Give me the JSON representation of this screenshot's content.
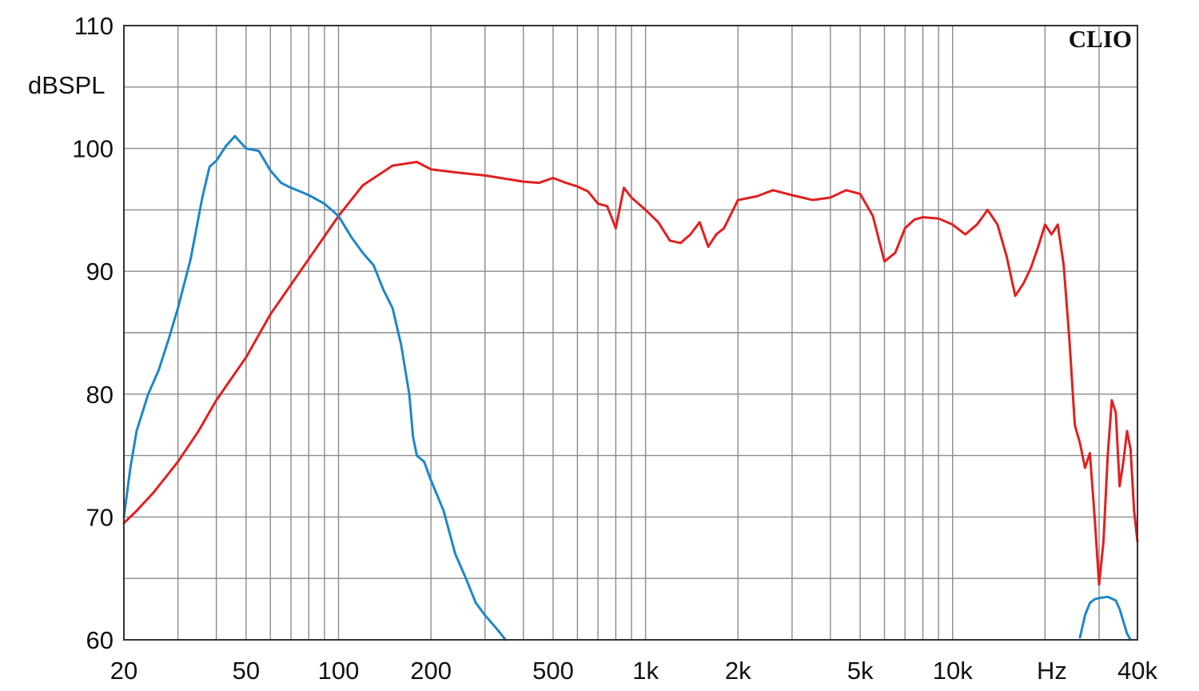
{
  "chart_data": {
    "type": "line",
    "brand": "CLIO",
    "ylabel": "dBSPL",
    "xlabel": "Hz",
    "x_scale": "log",
    "xlim": [
      20,
      40000
    ],
    "ylim": [
      60,
      110
    ],
    "grid": true,
    "x_tick_labels": [
      {
        "value": 20,
        "label": "20"
      },
      {
        "value": 50,
        "label": "50"
      },
      {
        "value": 100,
        "label": "100"
      },
      {
        "value": 200,
        "label": "200"
      },
      {
        "value": 500,
        "label": "500"
      },
      {
        "value": 1000,
        "label": "1k"
      },
      {
        "value": 2000,
        "label": "2k"
      },
      {
        "value": 5000,
        "label": "5k"
      },
      {
        "value": 10000,
        "label": "10k"
      },
      {
        "value": 40000,
        "label": "40k"
      }
    ],
    "y_tick_labels": [
      {
        "value": 110,
        "label": "110"
      },
      {
        "value": 100,
        "label": "100"
      },
      {
        "value": 90,
        "label": "90"
      },
      {
        "value": 80,
        "label": "80"
      },
      {
        "value": 70,
        "label": "70"
      },
      {
        "value": 60,
        "label": "60"
      }
    ],
    "series": [
      {
        "color": "#e02020",
        "points": [
          [
            20,
            69.5
          ],
          [
            22,
            70.5
          ],
          [
            25,
            72
          ],
          [
            30,
            74.5
          ],
          [
            35,
            77
          ],
          [
            40,
            79.5
          ],
          [
            50,
            83
          ],
          [
            60,
            86.5
          ],
          [
            80,
            91
          ],
          [
            100,
            94.5
          ],
          [
            120,
            97
          ],
          [
            150,
            98.6
          ],
          [
            180,
            98.9
          ],
          [
            200,
            98.3
          ],
          [
            250,
            98
          ],
          [
            300,
            97.8
          ],
          [
            400,
            97.3
          ],
          [
            450,
            97.2
          ],
          [
            500,
            97.6
          ],
          [
            550,
            97.2
          ],
          [
            600,
            96.9
          ],
          [
            650,
            96.5
          ],
          [
            700,
            95.5
          ],
          [
            750,
            95.3
          ],
          [
            800,
            93.5
          ],
          [
            850,
            96.8
          ],
          [
            900,
            96
          ],
          [
            1000,
            95
          ],
          [
            1100,
            94
          ],
          [
            1200,
            92.5
          ],
          [
            1300,
            92.3
          ],
          [
            1400,
            93
          ],
          [
            1500,
            94
          ],
          [
            1600,
            92
          ],
          [
            1700,
            93
          ],
          [
            1800,
            93.5
          ],
          [
            2000,
            95.8
          ],
          [
            2300,
            96.1
          ],
          [
            2600,
            96.6
          ],
          [
            3000,
            96.2
          ],
          [
            3500,
            95.8
          ],
          [
            4000,
            96
          ],
          [
            4500,
            96.6
          ],
          [
            5000,
            96.3
          ],
          [
            5500,
            94.5
          ],
          [
            6000,
            90.8
          ],
          [
            6500,
            91.5
          ],
          [
            7000,
            93.5
          ],
          [
            7500,
            94.2
          ],
          [
            8000,
            94.4
          ],
          [
            9000,
            94.3
          ],
          [
            10000,
            93.8
          ],
          [
            11000,
            93
          ],
          [
            12000,
            93.8
          ],
          [
            12500,
            94.4
          ],
          [
            13000,
            95
          ],
          [
            14000,
            93.8
          ],
          [
            15000,
            91.2
          ],
          [
            16000,
            88
          ],
          [
            17000,
            89
          ],
          [
            18000,
            90.3
          ],
          [
            19000,
            92
          ],
          [
            20000,
            93.8
          ],
          [
            21000,
            93
          ],
          [
            22000,
            93.8
          ],
          [
            23000,
            90.5
          ],
          [
            24000,
            84.5
          ],
          [
            25000,
            77.5
          ],
          [
            26000,
            76
          ],
          [
            27000,
            74
          ],
          [
            28000,
            75.2
          ],
          [
            29000,
            70
          ],
          [
            30000,
            64.5
          ],
          [
            31000,
            68
          ],
          [
            32000,
            75
          ],
          [
            33000,
            79.5
          ],
          [
            34000,
            78.5
          ],
          [
            35000,
            72.5
          ],
          [
            36000,
            74.5
          ],
          [
            37000,
            77
          ],
          [
            38000,
            75.5
          ],
          [
            39000,
            70.5
          ],
          [
            40000,
            68
          ]
        ]
      },
      {
        "color": "#1f87c6",
        "points": [
          [
            20,
            70
          ],
          [
            21,
            74
          ],
          [
            22,
            77
          ],
          [
            24,
            80
          ],
          [
            26,
            82
          ],
          [
            28,
            84.5
          ],
          [
            30,
            87
          ],
          [
            33,
            91
          ],
          [
            36,
            96
          ],
          [
            38,
            98.5
          ],
          [
            40,
            99
          ],
          [
            43,
            100.2
          ],
          [
            46,
            101
          ],
          [
            50,
            100
          ],
          [
            55,
            99.8
          ],
          [
            60,
            98.2
          ],
          [
            65,
            97.2
          ],
          [
            70,
            96.8
          ],
          [
            75,
            96.5
          ],
          [
            80,
            96.2
          ],
          [
            90,
            95.5
          ],
          [
            100,
            94.5
          ],
          [
            110,
            92.8
          ],
          [
            120,
            91.5
          ],
          [
            130,
            90.5
          ],
          [
            140,
            88.5
          ],
          [
            150,
            87
          ],
          [
            160,
            84
          ],
          [
            170,
            80
          ],
          [
            175,
            76.5
          ],
          [
            180,
            75
          ],
          [
            190,
            74.5
          ],
          [
            200,
            73
          ],
          [
            220,
            70.5
          ],
          [
            240,
            67
          ],
          [
            260,
            65
          ],
          [
            280,
            63
          ],
          [
            300,
            62
          ],
          [
            330,
            60.8
          ],
          [
            350,
            60
          ]
        ]
      },
      {
        "color": "#1f87c6",
        "points": [
          [
            26000,
            60.2
          ],
          [
            27000,
            62
          ],
          [
            28000,
            63
          ],
          [
            29000,
            63.3
          ],
          [
            30000,
            63.4
          ],
          [
            32000,
            63.5
          ],
          [
            34000,
            63.2
          ],
          [
            35000,
            62.5
          ],
          [
            36000,
            61.5
          ],
          [
            37000,
            60.5
          ],
          [
            38000,
            60
          ]
        ]
      }
    ]
  }
}
